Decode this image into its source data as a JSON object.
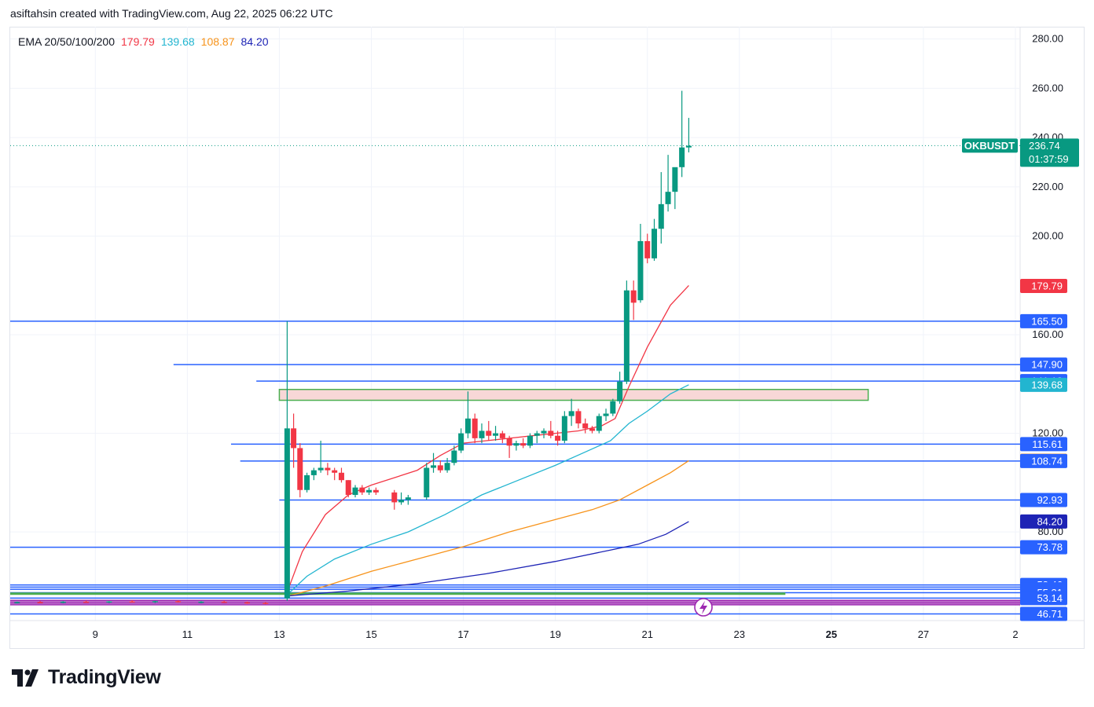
{
  "header": {
    "credit": "asiftahsin created with TradingView.com, Aug 22, 2025 06:22 UTC"
  },
  "legend": {
    "label": "EMA 20/50/100/200",
    "ema20": "179.79",
    "ema50": "139.68",
    "ema100": "108.87",
    "ema200": "84.20"
  },
  "brand": {
    "name": "TradingView"
  },
  "colors": {
    "up": "#089981",
    "down": "#f23645",
    "hline": "#2962ff",
    "ema20": "#f23645",
    "ema50": "#22b5d0",
    "ema100": "#f7931a",
    "ema200": "#1d23b5",
    "zone_fill": "#f8d7d7",
    "zone_border": "#4caf50"
  },
  "chart_data": {
    "type": "candlestick",
    "symbol": "OKBUSDT",
    "last_price": "236.74",
    "countdown": "01:37:59",
    "y_range": [
      44,
      285
    ],
    "y_ticks": [
      "280.00",
      "260.00",
      "240.00",
      "220.00",
      "200.00",
      "160.00",
      "120.00",
      "80.00"
    ],
    "x_ticks": [
      {
        "label": "9",
        "day": 9
      },
      {
        "label": "11",
        "day": 11
      },
      {
        "label": "13",
        "day": 13
      },
      {
        "label": "15",
        "day": 15
      },
      {
        "label": "17",
        "day": 17
      },
      {
        "label": "19",
        "day": 19
      },
      {
        "label": "21",
        "day": 21
      },
      {
        "label": "23",
        "day": 23
      },
      {
        "label": "25",
        "day": 25
      },
      {
        "label": "27",
        "day": 27
      },
      {
        "label": "2",
        "day": 29
      }
    ],
    "x_range": [
      7.15,
      29.0
    ],
    "price_tags": [
      {
        "value": 179.79,
        "label": "179.79",
        "color": "#f23645"
      },
      {
        "value": 165.5,
        "label": "165.50",
        "color": "#2962ff"
      },
      {
        "value": 147.9,
        "label": "147.90",
        "color": "#2962ff"
      },
      {
        "value": 141.18,
        "label": "141.18",
        "color": "#2962ff"
      },
      {
        "value": 139.68,
        "label": "139.68",
        "color": "#22b5d0"
      },
      {
        "value": 115.61,
        "label": "115.61",
        "color": "#2962ff"
      },
      {
        "value": 108.87,
        "label": "108.87",
        "color": "#f7931a"
      },
      {
        "value": 108.74,
        "label": "108.74",
        "color": "#2962ff"
      },
      {
        "value": 92.93,
        "label": "92.93",
        "color": "#2962ff"
      },
      {
        "value": 84.2,
        "label": "84.20",
        "color": "#1d23b5"
      },
      {
        "value": 73.78,
        "label": "73.78",
        "color": "#2962ff"
      },
      {
        "value": 58.46,
        "label": "58.46",
        "color": "#2962ff"
      },
      {
        "value": 56.71,
        "label": "56.71",
        "color": "#2962ff"
      },
      {
        "value": 55.31,
        "label": "55.31",
        "color": "#2962ff"
      },
      {
        "value": 53.14,
        "label": "53.14",
        "color": "#2962ff"
      },
      {
        "value": 46.71,
        "label": "46.71",
        "color": "#2962ff"
      }
    ],
    "hlines": [
      {
        "value": 165.5,
        "from_day": 7.15
      },
      {
        "value": 147.9,
        "from_day": 10.7
      },
      {
        "value": 141.18,
        "from_day": 12.5
      },
      {
        "value": 115.61,
        "from_day": 11.95
      },
      {
        "value": 108.74,
        "from_day": 12.15
      },
      {
        "value": 92.93,
        "from_day": 13.0
      },
      {
        "value": 73.78,
        "from_day": 7.15
      },
      {
        "value": 58.46,
        "from_day": 7.15
      },
      {
        "value": 57.6,
        "from_day": 7.15
      },
      {
        "value": 56.71,
        "from_day": 7.15
      },
      {
        "value": 55.31,
        "from_day": 7.15
      },
      {
        "value": 53.14,
        "from_day": 7.15
      },
      {
        "value": 46.71,
        "from_day": 7.15
      }
    ],
    "purple_lines": [
      52.2,
      51.6,
      51.0,
      50.4
    ],
    "green_line": {
      "value": 54.9,
      "from_day": 7.15,
      "to_day": 24.0
    },
    "zone": {
      "from_day": 13.0,
      "to_day": 25.8,
      "low": 133.4,
      "high": 137.8
    },
    "candles": [
      {
        "day": 7.3,
        "o": 51.3,
        "h": 51.8,
        "l": 50.9,
        "c": 51.5
      },
      {
        "day": 7.8,
        "o": 51.5,
        "h": 52.0,
        "l": 51.1,
        "c": 51.4
      },
      {
        "day": 8.3,
        "o": 51.4,
        "h": 51.9,
        "l": 51.0,
        "c": 51.7
      },
      {
        "day": 8.8,
        "o": 51.7,
        "h": 52.1,
        "l": 51.3,
        "c": 51.5
      },
      {
        "day": 9.3,
        "o": 51.5,
        "h": 51.9,
        "l": 51.1,
        "c": 51.8
      },
      {
        "day": 9.8,
        "o": 51.8,
        "h": 52.3,
        "l": 51.4,
        "c": 51.6
      },
      {
        "day": 10.3,
        "o": 51.6,
        "h": 52.0,
        "l": 51.2,
        "c": 51.9
      },
      {
        "day": 10.8,
        "o": 51.9,
        "h": 52.2,
        "l": 51.4,
        "c": 51.5
      },
      {
        "day": 11.3,
        "o": 51.5,
        "h": 51.9,
        "l": 51.0,
        "c": 51.7
      },
      {
        "day": 11.8,
        "o": 51.7,
        "h": 52.1,
        "l": 51.2,
        "c": 51.4
      },
      {
        "day": 12.3,
        "o": 51.4,
        "h": 51.8,
        "l": 50.8,
        "c": 51.2
      },
      {
        "day": 12.7,
        "o": 51.2,
        "h": 51.6,
        "l": 50.6,
        "c": 50.9
      },
      {
        "day": 13.17,
        "o": 53.0,
        "h": 165.5,
        "l": 52.0,
        "c": 122.0
      },
      {
        "day": 13.31,
        "o": 122.0,
        "h": 128.0,
        "l": 106.0,
        "c": 114.0
      },
      {
        "day": 13.45,
        "o": 114.0,
        "h": 116.0,
        "l": 94.0,
        "c": 97.0
      },
      {
        "day": 13.6,
        "o": 97.0,
        "h": 104.0,
        "l": 96.0,
        "c": 103.0
      },
      {
        "day": 13.75,
        "o": 103.0,
        "h": 106.0,
        "l": 101.0,
        "c": 105.0
      },
      {
        "day": 13.9,
        "o": 105.0,
        "h": 117.0,
        "l": 104.0,
        "c": 106.0
      },
      {
        "day": 14.05,
        "o": 106.0,
        "h": 108.0,
        "l": 103.0,
        "c": 105.0
      },
      {
        "day": 14.2,
        "o": 105.0,
        "h": 106.0,
        "l": 101.0,
        "c": 104.0
      },
      {
        "day": 14.35,
        "o": 104.0,
        "h": 106.0,
        "l": 100.0,
        "c": 101.0
      },
      {
        "day": 14.5,
        "o": 101.0,
        "h": 101.0,
        "l": 94.0,
        "c": 95.0
      },
      {
        "day": 14.65,
        "o": 95.0,
        "h": 99.0,
        "l": 94.0,
        "c": 98.0
      },
      {
        "day": 14.8,
        "o": 98.0,
        "h": 99.0,
        "l": 95.0,
        "c": 96.0
      },
      {
        "day": 14.95,
        "o": 96.0,
        "h": 98.0,
        "l": 95.0,
        "c": 97.0
      },
      {
        "day": 15.1,
        "o": 97.0,
        "h": 98.0,
        "l": 95.0,
        "c": 96.0
      },
      {
        "day": 15.5,
        "o": 96.0,
        "h": 97.0,
        "l": 89.0,
        "c": 92.0
      },
      {
        "day": 15.65,
        "o": 92.0,
        "h": 96.0,
        "l": 91.0,
        "c": 93.0
      },
      {
        "day": 15.8,
        "o": 93.0,
        "h": 95.0,
        "l": 91.0,
        "c": 94.0
      },
      {
        "day": 16.2,
        "o": 94.0,
        "h": 108.0,
        "l": 93.0,
        "c": 106.0
      },
      {
        "day": 16.35,
        "o": 106.0,
        "h": 112.0,
        "l": 104.0,
        "c": 107.0
      },
      {
        "day": 16.5,
        "o": 107.0,
        "h": 109.0,
        "l": 104.0,
        "c": 105.0
      },
      {
        "day": 16.65,
        "o": 105.0,
        "h": 110.0,
        "l": 104.0,
        "c": 108.0
      },
      {
        "day": 16.8,
        "o": 108.0,
        "h": 115.0,
        "l": 107.0,
        "c": 113.0
      },
      {
        "day": 16.95,
        "o": 113.0,
        "h": 122.0,
        "l": 112.0,
        "c": 120.0
      },
      {
        "day": 17.1,
        "o": 120.0,
        "h": 137.0,
        "l": 118.0,
        "c": 126.0
      },
      {
        "day": 17.25,
        "o": 126.0,
        "h": 128.0,
        "l": 116.0,
        "c": 118.0
      },
      {
        "day": 17.4,
        "o": 118.0,
        "h": 124.0,
        "l": 116.0,
        "c": 121.0
      },
      {
        "day": 17.55,
        "o": 121.0,
        "h": 125.0,
        "l": 117.0,
        "c": 119.0
      },
      {
        "day": 17.7,
        "o": 119.0,
        "h": 123.0,
        "l": 117.0,
        "c": 120.0
      },
      {
        "day": 17.85,
        "o": 120.0,
        "h": 121.0,
        "l": 116.0,
        "c": 118.0
      },
      {
        "day": 18.0,
        "o": 118.0,
        "h": 119.0,
        "l": 110.0,
        "c": 115.0
      },
      {
        "day": 18.15,
        "o": 115.0,
        "h": 117.0,
        "l": 113.0,
        "c": 116.0
      },
      {
        "day": 18.3,
        "o": 116.0,
        "h": 118.0,
        "l": 114.0,
        "c": 115.0
      },
      {
        "day": 18.45,
        "o": 115.0,
        "h": 120.0,
        "l": 114.0,
        "c": 119.0
      },
      {
        "day": 18.6,
        "o": 119.0,
        "h": 121.0,
        "l": 116.0,
        "c": 120.0
      },
      {
        "day": 18.75,
        "o": 120.0,
        "h": 122.0,
        "l": 118.0,
        "c": 121.0
      },
      {
        "day": 18.9,
        "o": 121.0,
        "h": 125.0,
        "l": 118.0,
        "c": 119.0
      },
      {
        "day": 19.05,
        "o": 119.0,
        "h": 121.0,
        "l": 115.0,
        "c": 117.0
      },
      {
        "day": 19.2,
        "o": 117.0,
        "h": 129.0,
        "l": 116.0,
        "c": 127.0
      },
      {
        "day": 19.35,
        "o": 127.0,
        "h": 134.0,
        "l": 123.0,
        "c": 129.0
      },
      {
        "day": 19.5,
        "o": 129.0,
        "h": 130.0,
        "l": 122.0,
        "c": 124.0
      },
      {
        "day": 19.65,
        "o": 124.0,
        "h": 126.0,
        "l": 120.0,
        "c": 122.0
      },
      {
        "day": 19.8,
        "o": 122.0,
        "h": 123.0,
        "l": 120.0,
        "c": 121.0
      },
      {
        "day": 19.95,
        "o": 121.0,
        "h": 128.0,
        "l": 120.0,
        "c": 127.0
      },
      {
        "day": 20.1,
        "o": 127.0,
        "h": 130.0,
        "l": 125.0,
        "c": 128.0
      },
      {
        "day": 20.25,
        "o": 128.0,
        "h": 134.0,
        "l": 127.0,
        "c": 133.0
      },
      {
        "day": 20.4,
        "o": 133.0,
        "h": 145.0,
        "l": 132.0,
        "c": 141.0
      },
      {
        "day": 20.55,
        "o": 141.0,
        "h": 182.0,
        "l": 140.0,
        "c": 178.0
      },
      {
        "day": 20.7,
        "o": 178.0,
        "h": 182.0,
        "l": 166.0,
        "c": 173.0
      },
      {
        "day": 20.85,
        "o": 174.0,
        "h": 205.0,
        "l": 173.0,
        "c": 198.0
      },
      {
        "day": 21.0,
        "o": 198.0,
        "h": 201.0,
        "l": 189.0,
        "c": 191.0
      },
      {
        "day": 21.15,
        "o": 191.0,
        "h": 207.0,
        "l": 190.0,
        "c": 203.0
      },
      {
        "day": 21.3,
        "o": 203.0,
        "h": 226.0,
        "l": 197.0,
        "c": 213.0
      },
      {
        "day": 21.45,
        "o": 213.0,
        "h": 233.0,
        "l": 210.0,
        "c": 218.0
      },
      {
        "day": 21.6,
        "o": 218.0,
        "h": 227.0,
        "l": 211.0,
        "c": 228.0
      },
      {
        "day": 21.75,
        "o": 228.0,
        "h": 259.0,
        "l": 224.0,
        "c": 236.0
      },
      {
        "day": 21.9,
        "o": 236.0,
        "h": 248.0,
        "l": 234.0,
        "c": 236.7
      }
    ],
    "ema": [
      {
        "name": "EMA 20",
        "color": "#f23645",
        "points": [
          [
            13.2,
            57
          ],
          [
            13.5,
            72
          ],
          [
            14.0,
            87
          ],
          [
            14.5,
            95
          ],
          [
            15.0,
            99
          ],
          [
            15.5,
            102
          ],
          [
            16.0,
            105
          ],
          [
            16.5,
            111
          ],
          [
            17.0,
            116
          ],
          [
            17.5,
            117
          ],
          [
            18.0,
            118
          ],
          [
            18.5,
            119
          ],
          [
            19.0,
            120
          ],
          [
            19.5,
            121
          ],
          [
            20.0,
            123
          ],
          [
            20.3,
            126
          ],
          [
            20.6,
            139
          ],
          [
            21.0,
            155
          ],
          [
            21.5,
            172
          ],
          [
            21.9,
            180
          ]
        ]
      },
      {
        "name": "EMA 50",
        "color": "#22b5d0",
        "points": [
          [
            13.2,
            55
          ],
          [
            13.6,
            62
          ],
          [
            14.2,
            69
          ],
          [
            15.0,
            75
          ],
          [
            15.8,
            80
          ],
          [
            16.6,
            87
          ],
          [
            17.4,
            95
          ],
          [
            18.2,
            101
          ],
          [
            19.0,
            107
          ],
          [
            19.6,
            112
          ],
          [
            20.2,
            117
          ],
          [
            20.6,
            124
          ],
          [
            21.0,
            129
          ],
          [
            21.5,
            136
          ],
          [
            21.9,
            139.7
          ]
        ]
      },
      {
        "name": "EMA 100",
        "color": "#f7931a",
        "points": [
          [
            13.2,
            54
          ],
          [
            14.0,
            58
          ],
          [
            15.0,
            64
          ],
          [
            16.0,
            69
          ],
          [
            17.0,
            74
          ],
          [
            18.0,
            80
          ],
          [
            19.0,
            85
          ],
          [
            19.8,
            89
          ],
          [
            20.4,
            93
          ],
          [
            21.0,
            99
          ],
          [
            21.5,
            104
          ],
          [
            21.9,
            108.9
          ]
        ]
      },
      {
        "name": "EMA 200",
        "color": "#1d23b5",
        "points": [
          [
            13.2,
            54
          ],
          [
            14.5,
            56
          ],
          [
            16.0,
            59
          ],
          [
            17.5,
            63
          ],
          [
            19.0,
            68
          ],
          [
            20.3,
            73
          ],
          [
            20.8,
            75
          ],
          [
            21.4,
            79
          ],
          [
            21.9,
            84.2
          ]
        ]
      }
    ]
  }
}
